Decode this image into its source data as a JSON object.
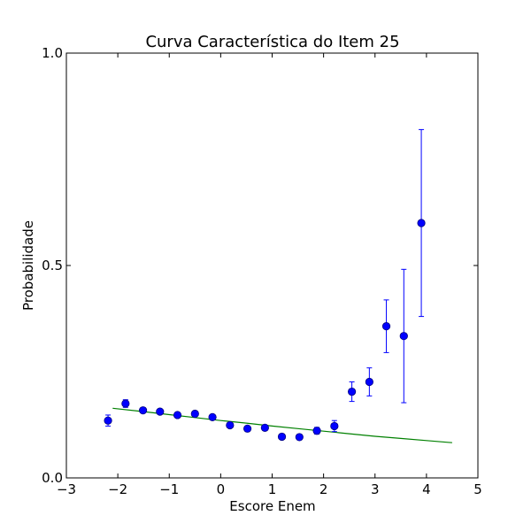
{
  "chart_data": {
    "type": "scatter",
    "title": "Curva Característica do Item 25",
    "xlabel": "Escore Enem",
    "ylabel": "Probabilidade",
    "xlim": [
      -3,
      5
    ],
    "ylim": [
      0,
      1
    ],
    "x_ticks": [
      {
        "value": -3,
        "label": "−3"
      },
      {
        "value": -2,
        "label": "−2"
      },
      {
        "value": -1,
        "label": "−1"
      },
      {
        "value": 0,
        "label": "0"
      },
      {
        "value": 1,
        "label": "1"
      },
      {
        "value": 2,
        "label": "2"
      },
      {
        "value": 3,
        "label": "3"
      },
      {
        "value": 4,
        "label": "4"
      },
      {
        "value": 5,
        "label": "5"
      }
    ],
    "y_ticks": [
      {
        "value": 0,
        "label": "0.0"
      },
      {
        "value": 0.5,
        "label": "0.5"
      },
      {
        "value": 1,
        "label": "1.0"
      }
    ],
    "grid": false,
    "observed": {
      "color": "#0000ff",
      "edge_color": "#000080",
      "points": [
        {
          "x": -2.19,
          "y": 0.135,
          "err": 0.013
        },
        {
          "x": -1.85,
          "y": 0.175,
          "err": 0.009
        },
        {
          "x": -1.51,
          "y": 0.159,
          "err": 0.006
        },
        {
          "x": -1.18,
          "y": 0.156,
          "err": 0.005
        },
        {
          "x": -0.84,
          "y": 0.148,
          "err": 0.004
        },
        {
          "x": -0.5,
          "y": 0.151,
          "err": 0.004
        },
        {
          "x": -0.16,
          "y": 0.143,
          "err": 0.004
        },
        {
          "x": 0.18,
          "y": 0.124,
          "err": 0.004
        },
        {
          "x": 0.52,
          "y": 0.116,
          "err": 0.004
        },
        {
          "x": 0.86,
          "y": 0.118,
          "err": 0.004
        },
        {
          "x": 1.19,
          "y": 0.097,
          "err": 0.004
        },
        {
          "x": 1.53,
          "y": 0.096,
          "err": 0.005
        },
        {
          "x": 1.87,
          "y": 0.111,
          "err": 0.008
        },
        {
          "x": 2.21,
          "y": 0.122,
          "err": 0.013
        },
        {
          "x": 2.55,
          "y": 0.203,
          "err": 0.023
        },
        {
          "x": 2.89,
          "y": 0.226,
          "err": 0.033
        },
        {
          "x": 3.22,
          "y": 0.357,
          "err": 0.062
        },
        {
          "x": 3.56,
          "y": 0.334,
          "err": 0.157
        },
        {
          "x": 3.9,
          "y": 0.6,
          "err": 0.22
        }
      ]
    },
    "fitted_curve": {
      "color": "#008000",
      "x": [
        -2.1,
        -1.5,
        -1.0,
        -0.5,
        0.0,
        0.5,
        1.0,
        1.5,
        2.0,
        2.5,
        3.0,
        3.5,
        4.0,
        4.5
      ],
      "y": [
        0.164,
        0.156,
        0.149,
        0.142,
        0.135,
        0.129,
        0.122,
        0.116,
        0.11,
        0.104,
        0.098,
        0.093,
        0.088,
        0.083
      ]
    }
  }
}
